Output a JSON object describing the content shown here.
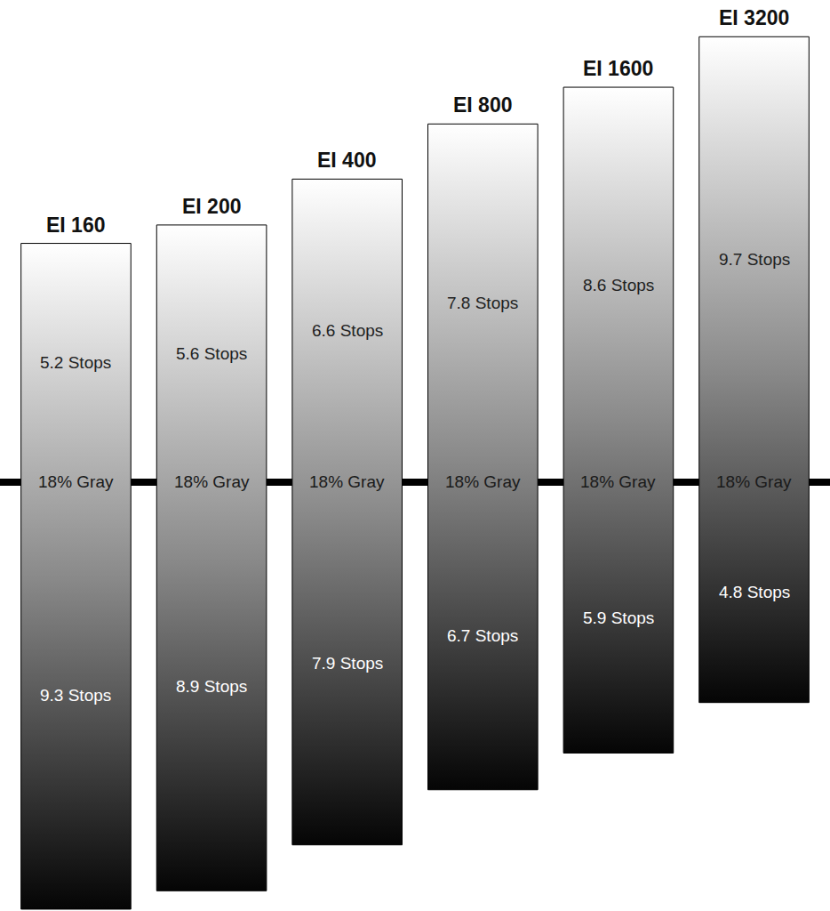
{
  "chart_data": {
    "type": "bar",
    "categories": [
      "EI 160",
      "EI 200",
      "EI 400",
      "EI 800",
      "EI 1600",
      "EI 3200"
    ],
    "series": [
      {
        "values": [
          5.2,
          5.6,
          6.6,
          7.8,
          8.6,
          9.7
        ],
        "value_labels": [
          "5.2 Stops",
          "5.6 Stops",
          "6.6 Stops",
          "7.8 Stops",
          "8.6 Stops",
          "9.7 Stops"
        ]
      },
      {
        "values": [
          9.3,
          8.9,
          7.9,
          6.7,
          5.9,
          4.8
        ],
        "value_labels": [
          "9.3 Stops",
          "8.9 Stops",
          "7.9 Stops",
          "6.7 Stops",
          "5.9 Stops",
          "4.8 Stops"
        ]
      }
    ],
    "reference_line": {
      "value": 0,
      "label": "18% Gray"
    },
    "data_labels": true,
    "tick_labels": false
  }
}
